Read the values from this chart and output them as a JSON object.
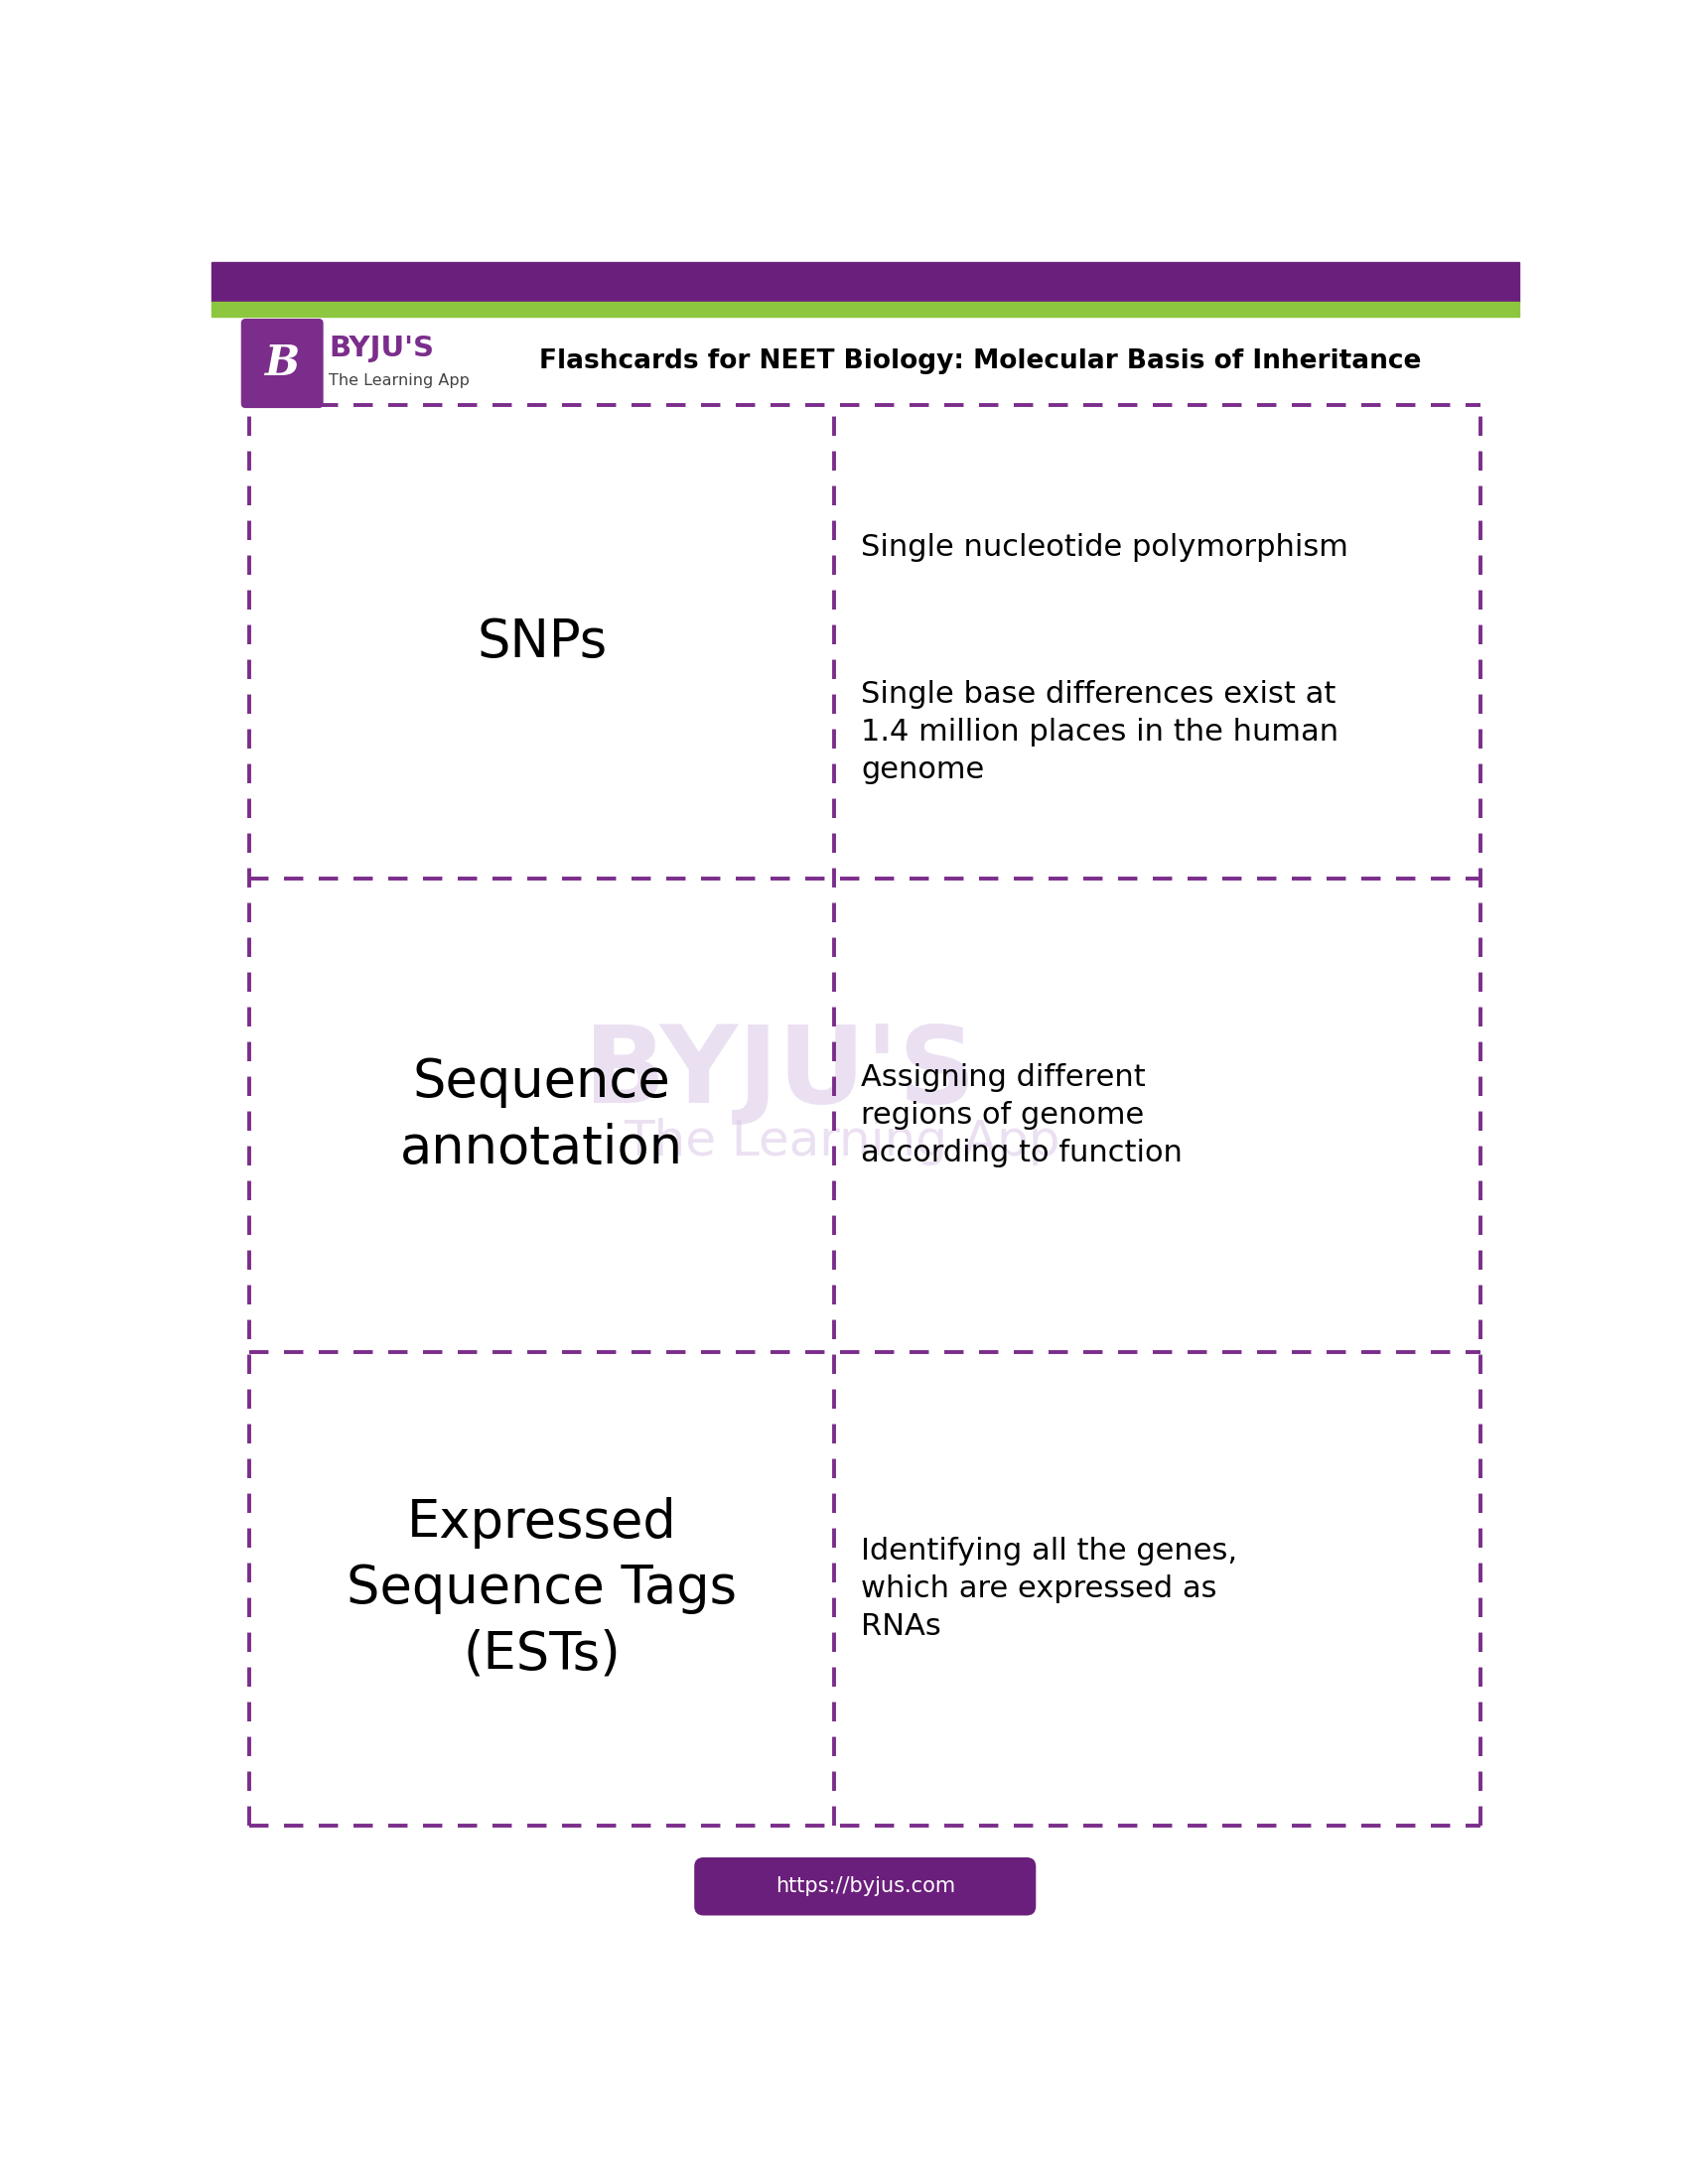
{
  "title": "Flashcards for NEET Biology: Molecular Basis of Inheritance",
  "header_purple": "#6b1f7c",
  "header_green": "#8dc63f",
  "purple_color": "#7b2d8b",
  "dashed_border_color": "#7b2d8b",
  "bg_color": "#ffffff",
  "footer_bg": "#6b1f7c",
  "footer_text": "https://byjus.com",
  "footer_text_color": "#ffffff",
  "watermark_color": "#dcc8e8",
  "rows": [
    {
      "term": "SNPs",
      "def_top": "Single nucleotide polymorphism",
      "def_bottom": "Single base differences exist at\n1.4 million places in the human\ngenome",
      "term_fontsize": 38,
      "def_fontsize": 22
    },
    {
      "term": "Sequence\nannotation",
      "def_top": null,
      "def_bottom": "Assigning different\nregions of genome\naccording to function",
      "term_fontsize": 38,
      "def_fontsize": 22
    },
    {
      "term": "Expressed\nSequence Tags\n(ESTs)",
      "def_top": null,
      "def_bottom": "Identifying all the genes,\nwhich are expressed as\nRNAs",
      "term_fontsize": 38,
      "def_fontsize": 22
    }
  ]
}
